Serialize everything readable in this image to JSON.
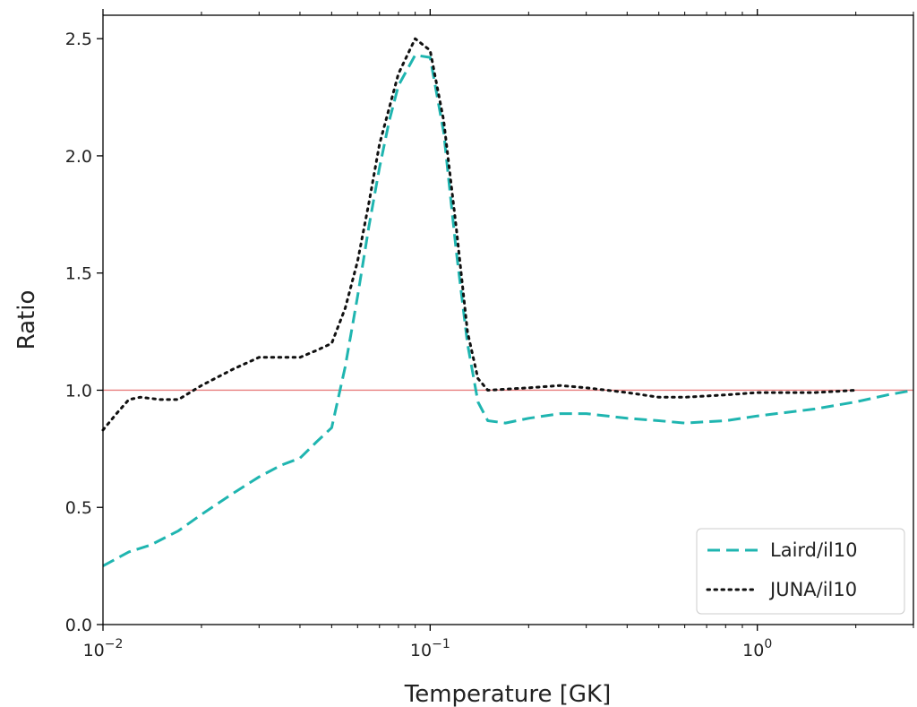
{
  "chart_data": {
    "type": "line",
    "xlabel": "Temperature [GK]",
    "ylabel": "Ratio",
    "x_scale": "log",
    "xlim": [
      0.01,
      3.0
    ],
    "ylim": [
      0.0,
      2.6
    ],
    "grid": false,
    "legend_position": "lower-right",
    "x_ticks": [
      {
        "value": 0.01,
        "base": "10",
        "exp": "−2"
      },
      {
        "value": 0.1,
        "base": "10",
        "exp": "−1"
      },
      {
        "value": 1,
        "base": "10",
        "exp": "0"
      }
    ],
    "y_ticks": [
      "0.0",
      "0.5",
      "1.0",
      "1.5",
      "2.0",
      "2.5"
    ],
    "reference_line": {
      "y": 1.0,
      "color": "#e87f7f"
    },
    "series": [
      {
        "name": "Laird/il10",
        "color": "#1fb5b0",
        "style": "dashed",
        "points": [
          [
            0.01,
            0.25
          ],
          [
            0.012,
            0.31
          ],
          [
            0.014,
            0.34
          ],
          [
            0.017,
            0.4
          ],
          [
            0.02,
            0.47
          ],
          [
            0.025,
            0.56
          ],
          [
            0.03,
            0.63
          ],
          [
            0.035,
            0.68
          ],
          [
            0.04,
            0.71
          ],
          [
            0.045,
            0.78
          ],
          [
            0.05,
            0.84
          ],
          [
            0.055,
            1.1
          ],
          [
            0.06,
            1.4
          ],
          [
            0.065,
            1.7
          ],
          [
            0.07,
            1.95
          ],
          [
            0.075,
            2.15
          ],
          [
            0.08,
            2.3
          ],
          [
            0.09,
            2.43
          ],
          [
            0.1,
            2.42
          ],
          [
            0.11,
            2.1
          ],
          [
            0.12,
            1.6
          ],
          [
            0.13,
            1.2
          ],
          [
            0.14,
            0.95
          ],
          [
            0.15,
            0.87
          ],
          [
            0.17,
            0.86
          ],
          [
            0.2,
            0.88
          ],
          [
            0.25,
            0.9
          ],
          [
            0.3,
            0.9
          ],
          [
            0.4,
            0.88
          ],
          [
            0.5,
            0.87
          ],
          [
            0.6,
            0.86
          ],
          [
            0.8,
            0.87
          ],
          [
            1.0,
            0.89
          ],
          [
            1.5,
            0.92
          ],
          [
            2.0,
            0.95
          ],
          [
            2.5,
            0.98
          ],
          [
            3.0,
            1.0
          ]
        ]
      },
      {
        "name": "JUNA/il10",
        "color": "#111111",
        "style": "dotted",
        "points": [
          [
            0.01,
            0.83
          ],
          [
            0.011,
            0.9
          ],
          [
            0.012,
            0.96
          ],
          [
            0.013,
            0.97
          ],
          [
            0.015,
            0.96
          ],
          [
            0.017,
            0.96
          ],
          [
            0.02,
            1.02
          ],
          [
            0.025,
            1.09
          ],
          [
            0.03,
            1.14
          ],
          [
            0.035,
            1.14
          ],
          [
            0.04,
            1.14
          ],
          [
            0.045,
            1.17
          ],
          [
            0.05,
            1.2
          ],
          [
            0.055,
            1.35
          ],
          [
            0.06,
            1.55
          ],
          [
            0.065,
            1.8
          ],
          [
            0.07,
            2.05
          ],
          [
            0.08,
            2.35
          ],
          [
            0.09,
            2.5
          ],
          [
            0.1,
            2.45
          ],
          [
            0.11,
            2.15
          ],
          [
            0.12,
            1.7
          ],
          [
            0.13,
            1.25
          ],
          [
            0.14,
            1.05
          ],
          [
            0.15,
            1.0
          ],
          [
            0.2,
            1.01
          ],
          [
            0.25,
            1.02
          ],
          [
            0.3,
            1.01
          ],
          [
            0.4,
            0.99
          ],
          [
            0.5,
            0.97
          ],
          [
            0.6,
            0.97
          ],
          [
            0.8,
            0.98
          ],
          [
            1.0,
            0.99
          ],
          [
            1.5,
            0.99
          ],
          [
            2.0,
            1.0
          ]
        ]
      }
    ]
  }
}
